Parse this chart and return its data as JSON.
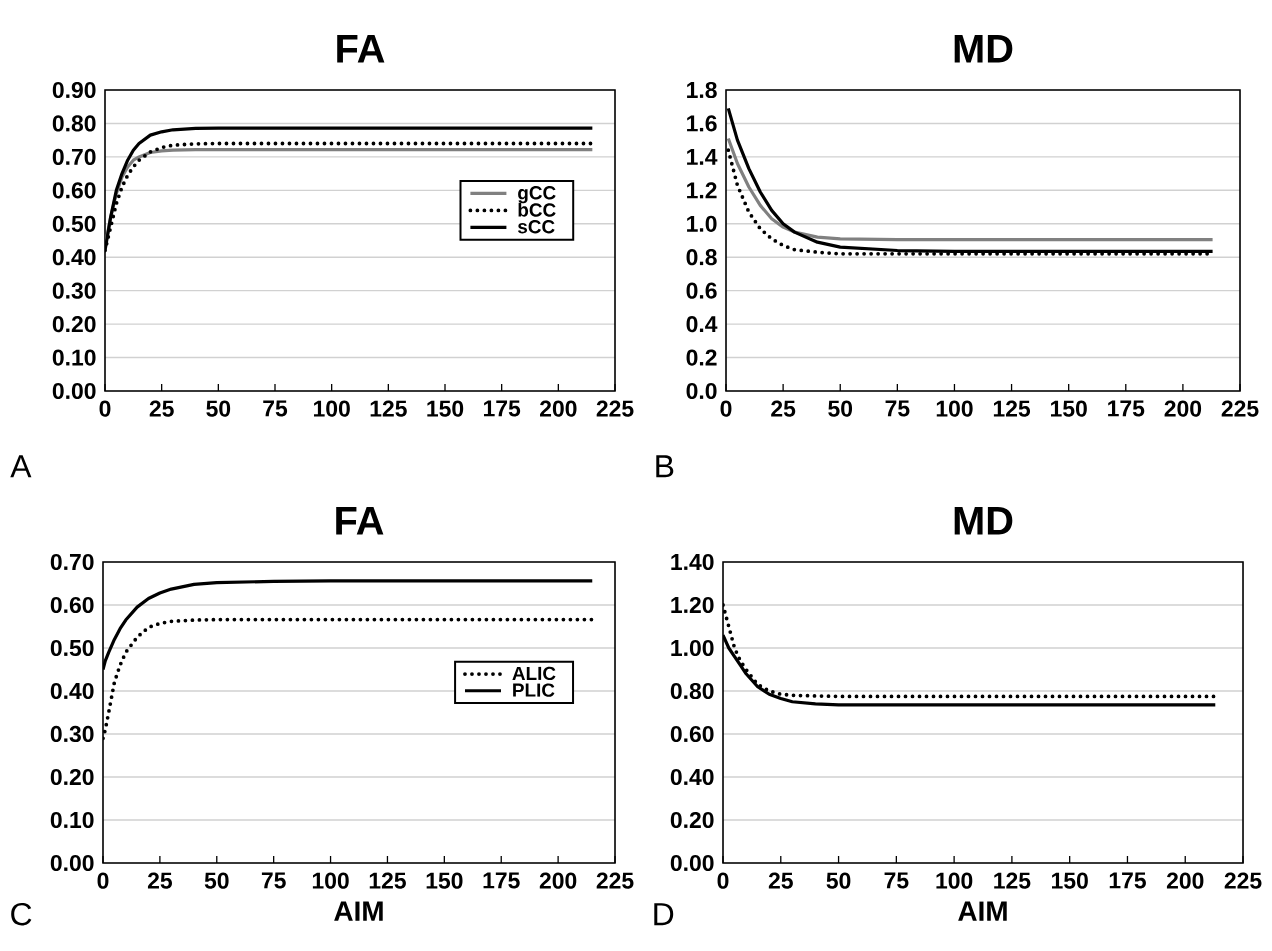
{
  "chart_data": [
    {
      "type": "line",
      "title": "FA",
      "xlim": [
        0,
        225
      ],
      "ylim": [
        0,
        0.9
      ],
      "xticks": [
        0,
        25,
        50,
        75,
        100,
        125,
        150,
        175,
        200,
        225
      ],
      "yticks": [
        {
          "value": 0,
          "label": "0.00"
        },
        {
          "value": 0.1,
          "label": "0.10"
        },
        {
          "value": 0.2,
          "label": "0.20"
        },
        {
          "value": 0.3,
          "label": "0.30"
        },
        {
          "value": 0.4,
          "label": "0.40"
        },
        {
          "value": 0.5,
          "label": "0.50"
        },
        {
          "value": 0.6,
          "label": "0.60"
        },
        {
          "value": 0.7,
          "label": "0.70"
        },
        {
          "value": 0.8,
          "label": "0.80"
        },
        {
          "value": 0.9,
          "label": "0.90"
        }
      ],
      "grid": "y",
      "legend": "right",
      "annotations": [
        "A"
      ],
      "x": [
        0,
        2.5,
        5,
        7.5,
        10,
        12.5,
        15,
        20,
        25,
        30,
        40,
        50,
        75,
        100,
        150,
        215
      ],
      "series": [
        {
          "name": "gCC",
          "color": "#808080",
          "line_style": "solid",
          "values": [
            0.43,
            0.52,
            0.59,
            0.64,
            0.67,
            0.69,
            0.7,
            0.713,
            0.718,
            0.72,
            0.722,
            0.722,
            0.722,
            0.722,
            0.722,
            0.722
          ]
        },
        {
          "name": "bCC",
          "color": "#000000",
          "line_style": "dotted",
          "values": [
            0.42,
            0.49,
            0.56,
            0.61,
            0.645,
            0.67,
            0.69,
            0.715,
            0.728,
            0.735,
            0.739,
            0.74,
            0.74,
            0.74,
            0.74,
            0.74
          ]
        },
        {
          "name": "sCC",
          "color": "#000000",
          "line_style": "solid",
          "values": [
            0.42,
            0.52,
            0.6,
            0.65,
            0.69,
            0.72,
            0.74,
            0.765,
            0.775,
            0.781,
            0.785,
            0.786,
            0.786,
            0.786,
            0.786,
            0.786
          ]
        }
      ]
    },
    {
      "type": "line",
      "title": "MD",
      "xlim": [
        0,
        225
      ],
      "ylim": [
        0,
        1.8
      ],
      "xticks": [
        0,
        25,
        50,
        75,
        100,
        125,
        150,
        175,
        200,
        225
      ],
      "yticks": [
        {
          "value": 0,
          "label": "0.0"
        },
        0.2,
        0.4,
        0.6,
        0.8,
        {
          "value": 1,
          "label": "1.0"
        },
        1.2,
        1.4,
        1.6,
        1.8
      ],
      "grid": "y",
      "annotations": [
        "B"
      ],
      "x": [
        1,
        5,
        10,
        15,
        20,
        25,
        30,
        40,
        50,
        75,
        100,
        150,
        213
      ],
      "series": [
        {
          "color": "#808080",
          "line_style": "solid",
          "values": [
            1.51,
            1.36,
            1.22,
            1.11,
            1.03,
            0.98,
            0.95,
            0.92,
            0.91,
            0.905,
            0.905,
            0.905,
            0.905
          ]
        },
        {
          "color": "#000000",
          "line_style": "dotted",
          "values": [
            1.44,
            1.23,
            1.07,
            0.97,
            0.91,
            0.87,
            0.845,
            0.83,
            0.82,
            0.82,
            0.82,
            0.82,
            0.82
          ]
        },
        {
          "color": "#000000",
          "line_style": "solid",
          "values": [
            1.69,
            1.5,
            1.33,
            1.19,
            1.08,
            1.0,
            0.95,
            0.89,
            0.86,
            0.84,
            0.835,
            0.835,
            0.835
          ]
        }
      ]
    },
    {
      "type": "line",
      "title": "FA",
      "xlabel": "AIM",
      "xlim": [
        0,
        225
      ],
      "ylim": [
        0,
        0.7
      ],
      "xticks": [
        0,
        25,
        50,
        75,
        100,
        125,
        150,
        175,
        200,
        225
      ],
      "yticks": [
        {
          "value": 0,
          "label": "0.00"
        },
        {
          "value": 0.1,
          "label": "0.10"
        },
        {
          "value": 0.2,
          "label": "0.20"
        },
        {
          "value": 0.3,
          "label": "0.30"
        },
        {
          "value": 0.4,
          "label": "0.40"
        },
        {
          "value": 0.5,
          "label": "0.50"
        },
        {
          "value": 0.6,
          "label": "0.60"
        },
        {
          "value": 0.7,
          "label": "0.70"
        }
      ],
      "grid": "y",
      "legend": "right",
      "annotations": [
        "C"
      ],
      "x": [
        0,
        1,
        2.5,
        5,
        7.5,
        10,
        15,
        20,
        25,
        30,
        40,
        50,
        75,
        100,
        150,
        215
      ],
      "series": [
        {
          "name": "ALIC",
          "color": "#000000",
          "line_style": "dotted",
          "values": [
            0.29,
            0.31,
            0.35,
            0.42,
            0.46,
            0.49,
            0.525,
            0.548,
            0.557,
            0.562,
            0.565,
            0.566,
            0.566,
            0.566,
            0.566,
            0.566
          ]
        },
        {
          "name": "PLIC",
          "color": "#000000",
          "line_style": "solid",
          "values": [
            0.45,
            0.47,
            0.49,
            0.52,
            0.545,
            0.565,
            0.595,
            0.615,
            0.628,
            0.637,
            0.648,
            0.652,
            0.655,
            0.656,
            0.656,
            0.656
          ]
        }
      ]
    },
    {
      "type": "line",
      "title": "MD",
      "xlabel": "AIM",
      "xlim": [
        0,
        225
      ],
      "ylim": [
        0,
        1.4
      ],
      "xticks": [
        0,
        25,
        50,
        75,
        100,
        125,
        150,
        175,
        200,
        225
      ],
      "yticks": [
        {
          "value": 0,
          "label": "0.00"
        },
        {
          "value": 0.2,
          "label": "0.20"
        },
        {
          "value": 0.4,
          "label": "0.40"
        },
        {
          "value": 0.6,
          "label": "0.60"
        },
        {
          "value": 0.8,
          "label": "0.80"
        },
        {
          "value": 1,
          "label": "1.00"
        },
        {
          "value": 1.2,
          "label": "1.20"
        },
        {
          "value": 1.4,
          "label": "1.40"
        }
      ],
      "grid": "y",
      "annotations": [
        "D"
      ],
      "x": [
        0,
        2.5,
        5,
        7.5,
        10,
        15,
        20,
        25,
        30,
        40,
        50,
        75,
        100,
        150,
        213
      ],
      "series": [
        {
          "color": "#000000",
          "line_style": "dotted",
          "values": [
            1.2,
            1.1,
            1.0,
            0.94,
            0.9,
            0.83,
            0.8,
            0.785,
            0.78,
            0.777,
            0.775,
            0.775,
            0.775,
            0.775,
            0.775
          ]
        },
        {
          "color": "#000000",
          "line_style": "solid",
          "values": [
            1.06,
            1.0,
            0.96,
            0.92,
            0.88,
            0.82,
            0.785,
            0.765,
            0.75,
            0.74,
            0.735,
            0.735,
            0.735,
            0.735,
            0.735
          ]
        }
      ]
    }
  ]
}
